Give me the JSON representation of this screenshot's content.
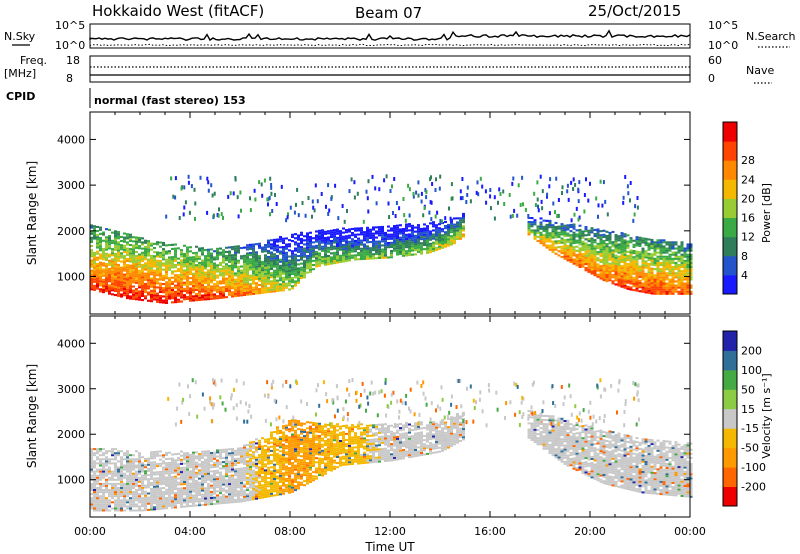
{
  "header": {
    "radar": "Hokkaido West (fitACF)",
    "beam": "Beam 07",
    "date": "25/Oct/2015"
  },
  "noise_panel": {
    "left_label": "N.Sky",
    "left_ticks": [
      "10^5",
      "10^0"
    ],
    "right_ticks": [
      "10^5",
      "10^0"
    ],
    "right_label": "N.Search"
  },
  "freq_panel": {
    "left_label_line1": "Freq.",
    "left_label_line2": "[MHz]",
    "left_ticks": [
      "18",
      "8"
    ],
    "right_ticks": [
      "60",
      "0"
    ],
    "right_label": "Nave"
  },
  "cpid_panel": {
    "label": "CPID",
    "program": "normal (fast stereo) 153"
  },
  "colors": {
    "power": [
      "#1a1aff",
      "#2255cc",
      "#2f7d5a",
      "#3aaa44",
      "#99cc33",
      "#f5b800",
      "#ff8800",
      "#ff4400",
      "#ee0000"
    ],
    "velocity": [
      "#ee0000",
      "#ff6600",
      "#ff9900",
      "#f5b800",
      "#c8c8c8",
      "#8ccc44",
      "#44aa44",
      "#2f6f9a",
      "#2222aa"
    ]
  },
  "chart_data": [
    {
      "type": "heatmap",
      "quantity": "Power",
      "ylabel": "Slant Range [km]",
      "xlabel": "",
      "x_ticks": [
        "00:00",
        "04:00",
        "08:00",
        "12:00",
        "16:00",
        "20:00",
        "00:00"
      ],
      "y_ticks": [
        "1000",
        "2000",
        "3000",
        "4000"
      ],
      "xlim_hours": [
        0,
        24
      ],
      "ylim_km": [
        180,
        4600
      ],
      "colorbar": {
        "label": "Power [dB]",
        "ticks": [
          "4",
          "8",
          "12",
          "16",
          "20",
          "24",
          "28"
        ],
        "range": [
          0,
          30
        ]
      },
      "echo_regions": [
        {
          "x": [
            0.0,
            1.5,
            3.0,
            5.0,
            6.5,
            8.0,
            9.0,
            10.5,
            12.0,
            13.5,
            14.5,
            15.0
          ],
          "lower_km": [
            700,
            500,
            400,
            500,
            600,
            700,
            1200,
            1350,
            1400,
            1500,
            1700,
            1900
          ],
          "upper_km": [
            2100,
            1900,
            1700,
            1600,
            1700,
            1900,
            2000,
            2050,
            2100,
            2150,
            2250,
            2400
          ],
          "power_db": [
            26,
            28,
            28,
            26,
            22,
            16,
            16,
            14,
            14,
            16,
            18,
            20
          ]
        },
        {
          "x": [
            17.5,
            18.5,
            19.5,
            20.5,
            21.5,
            22.5,
            24.0
          ],
          "lower_km": [
            1900,
            1500,
            1200,
            900,
            700,
            600,
            600
          ],
          "upper_km": [
            2300,
            2200,
            2100,
            2000,
            1900,
            1800,
            1700
          ],
          "power_db": [
            18,
            22,
            24,
            24,
            26,
            26,
            24
          ]
        }
      ]
    },
    {
      "type": "heatmap",
      "quantity": "Velocity",
      "ylabel": "Slant Range [km]",
      "xlabel": "Time UT",
      "x_ticks": [
        "00:00",
        "04:00",
        "08:00",
        "12:00",
        "16:00",
        "20:00",
        "00:00"
      ],
      "y_ticks": [
        "1000",
        "2000",
        "3000",
        "4000"
      ],
      "xlim_hours": [
        0,
        24
      ],
      "ylim_km": [
        180,
        4600
      ],
      "colorbar": {
        "label": "Velocity [m s⁻¹]",
        "ticks": [
          "200",
          "100",
          "50",
          "15",
          "-15",
          "-50",
          "-100",
          "-200"
        ],
        "range": [
          -250,
          250
        ]
      },
      "echo_regions": [
        {
          "x": [
            0.0,
            2.0,
            4.0,
            6.0,
            8.0,
            10.0,
            12.0,
            14.0,
            15.0
          ],
          "lower_km": [
            300,
            300,
            400,
            500,
            700,
            1300,
            1400,
            1600,
            1900
          ],
          "upper_km": [
            1700,
            1600,
            1600,
            1700,
            2300,
            2200,
            2200,
            2300,
            2500
          ],
          "velocity_ms": [
            0,
            0,
            0,
            0,
            -60,
            -40,
            0,
            0,
            0
          ]
        },
        {
          "x": [
            17.5,
            19.0,
            20.5,
            22.0,
            24.0
          ],
          "lower_km": [
            1900,
            1300,
            900,
            700,
            600
          ],
          "upper_km": [
            2500,
            2300,
            2100,
            1900,
            1800
          ],
          "velocity_ms": [
            0,
            0,
            0,
            0,
            0
          ]
        }
      ]
    }
  ]
}
